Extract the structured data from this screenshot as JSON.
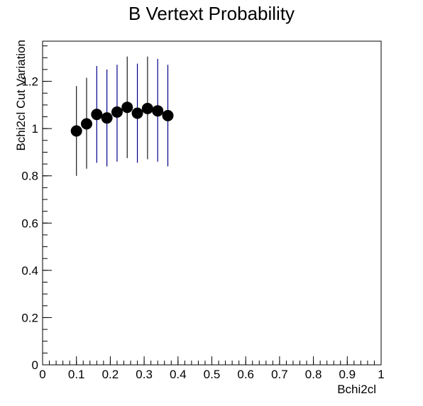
{
  "chart_data": {
    "type": "scatter",
    "title": "B Vertext Probability",
    "xlabel": "Bchi2cl",
    "ylabel": "Bchi2cl Cut Variation",
    "xlim": [
      0,
      1
    ],
    "ylim": [
      0,
      1.37
    ],
    "xticks": [
      0,
      0.1,
      0.2,
      0.3,
      0.4,
      0.5,
      0.6,
      0.7,
      0.8,
      0.9,
      1
    ],
    "xtick_labels": [
      "0",
      "0.1",
      "0.2",
      "0.3",
      "0.4",
      "0.5",
      "0.6",
      "0.7",
      "0.8",
      "0.9",
      "1"
    ],
    "yticks": [
      0,
      0.2,
      0.4,
      0.6,
      0.8,
      1,
      1.2
    ],
    "ytick_labels": [
      "0",
      "0.2",
      "0.4",
      "0.6",
      "0.8",
      "1",
      "1.2"
    ],
    "grid": false,
    "legend": "none",
    "marker_color": "#000000",
    "series": [
      {
        "x": [
          0.1,
          0.13,
          0.16,
          0.19,
          0.22,
          0.25,
          0.28,
          0.31,
          0.34,
          0.37
        ],
        "y": [
          0.99,
          1.02,
          1.06,
          1.045,
          1.07,
          1.09,
          1.065,
          1.085,
          1.075,
          1.055
        ],
        "y_low": [
          0.8,
          0.83,
          0.855,
          0.84,
          0.86,
          0.875,
          0.855,
          0.87,
          0.86,
          0.84
        ],
        "y_high": [
          1.18,
          1.215,
          1.265,
          1.25,
          1.27,
          1.305,
          1.275,
          1.305,
          1.295,
          1.27
        ],
        "error_colors": [
          "#1a1a1a",
          "#1a1a1a",
          "#00008b",
          "#00008b",
          "#00008b",
          "#1a1a1a",
          "#00008b",
          "#1a1a1a",
          "#00008b",
          "#00008b"
        ]
      }
    ]
  }
}
